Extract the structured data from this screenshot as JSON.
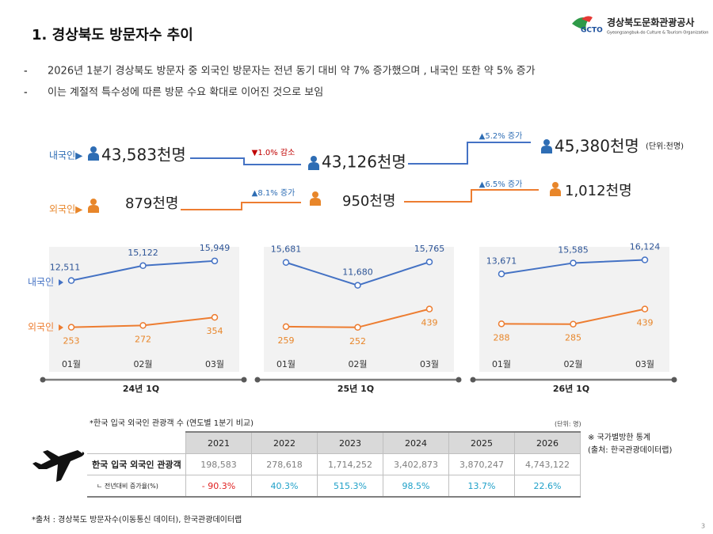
{
  "header": {
    "title": "1. 경상북도 방문자수 추이",
    "logo_mark": "GCTO",
    "logo_name": "경상북도문화관광공사",
    "logo_sub": "Gyeongsangbuk-do Culture & Tourism Organization"
  },
  "bullets": [
    "2026년 1분기 경상북도 방문자 중 외국인 방문자는 전년 동기 대비 약 7% 증가했으며 , 내국인 또한 약 5% 증가",
    "이는 계절적 특수성에 따른 방문 수요 확대로 이어진 것으로 보임"
  ],
  "summary": {
    "unit": "(단위:천명)",
    "domestic": {
      "label": "내국인▶",
      "values": [
        "43,583천명",
        "43,126천명",
        "45,380천명"
      ],
      "changes": [
        "▼1.0% 감소",
        "▲5.2% 증가"
      ]
    },
    "foreign": {
      "label": "외국인▶",
      "values": [
        "879천명",
        "950천명",
        "1,012천명"
      ],
      "changes": [
        "▲8.1% 증가",
        "▲6.5% 증가"
      ]
    }
  },
  "chart_data": [
    {
      "type": "line",
      "title": "24년 1Q",
      "categories": [
        "01월",
        "02월",
        "03월"
      ],
      "ylim": [
        0,
        18000
      ],
      "y2lim": [
        0,
        1050
      ],
      "series": [
        {
          "name": "내국인",
          "color": "#4472c4",
          "values": [
            12511,
            15122,
            15949
          ],
          "value_labels": [
            "12,511",
            "15,122",
            "15,949"
          ]
        },
        {
          "name": "외국인",
          "color": "#ed7d31",
          "axis": "y2",
          "values": [
            253,
            272,
            354
          ]
        }
      ]
    },
    {
      "type": "line",
      "title": "25년 1Q",
      "categories": [
        "01월",
        "02월",
        "03월"
      ],
      "ylim": [
        0,
        18000
      ],
      "y2lim": [
        0,
        1050
      ],
      "series": [
        {
          "color": "#4472c4",
          "values": [
            15681,
            11680,
            15765
          ],
          "value_labels": [
            "15,681",
            "11,680",
            "15,765"
          ]
        },
        {
          "color": "#ed7d31",
          "axis": "y2",
          "values": [
            259,
            252,
            439
          ]
        }
      ]
    },
    {
      "type": "line",
      "title": "26년 1Q",
      "categories": [
        "01월",
        "02월",
        "03월"
      ],
      "ylim": [
        0,
        18000
      ],
      "y2lim": [
        0,
        1050
      ],
      "series": [
        {
          "color": "#4472c4",
          "values": [
            13671,
            15585,
            16124
          ],
          "value_labels": [
            "13,671",
            "15,585",
            "16,124"
          ]
        },
        {
          "color": "#ed7d31",
          "axis": "y2",
          "values": [
            288,
            285,
            439
          ]
        }
      ]
    }
  ],
  "table": {
    "caption": "*한국 입국 외국인 관광객 수 (연도별 1분기 비교)",
    "unit": "(단위: 명)",
    "header": [
      "2021",
      "2022",
      "2023",
      "2024",
      "2025",
      "2026"
    ],
    "rows": [
      [
        "한국 입국 외국인 관광객",
        "198,583",
        "278,618",
        "1,714,252",
        "3,402,873",
        "3,870,247",
        "4,743,122"
      ],
      [
        "ㄴ 전년대비 증가율(%)",
        "- 90.3%",
        "40.3%",
        "515.3%",
        "98.5%",
        "13.7%",
        "22.6%"
      ]
    ],
    "note": [
      "※ 국가별방한 통계",
      "(출처: 한국관광데이터랩)"
    ]
  },
  "footer": {
    "source": "*출처 : 경상북도 방문자수(이동통신 데이터), 한국관광데이터랩",
    "page": "3"
  }
}
